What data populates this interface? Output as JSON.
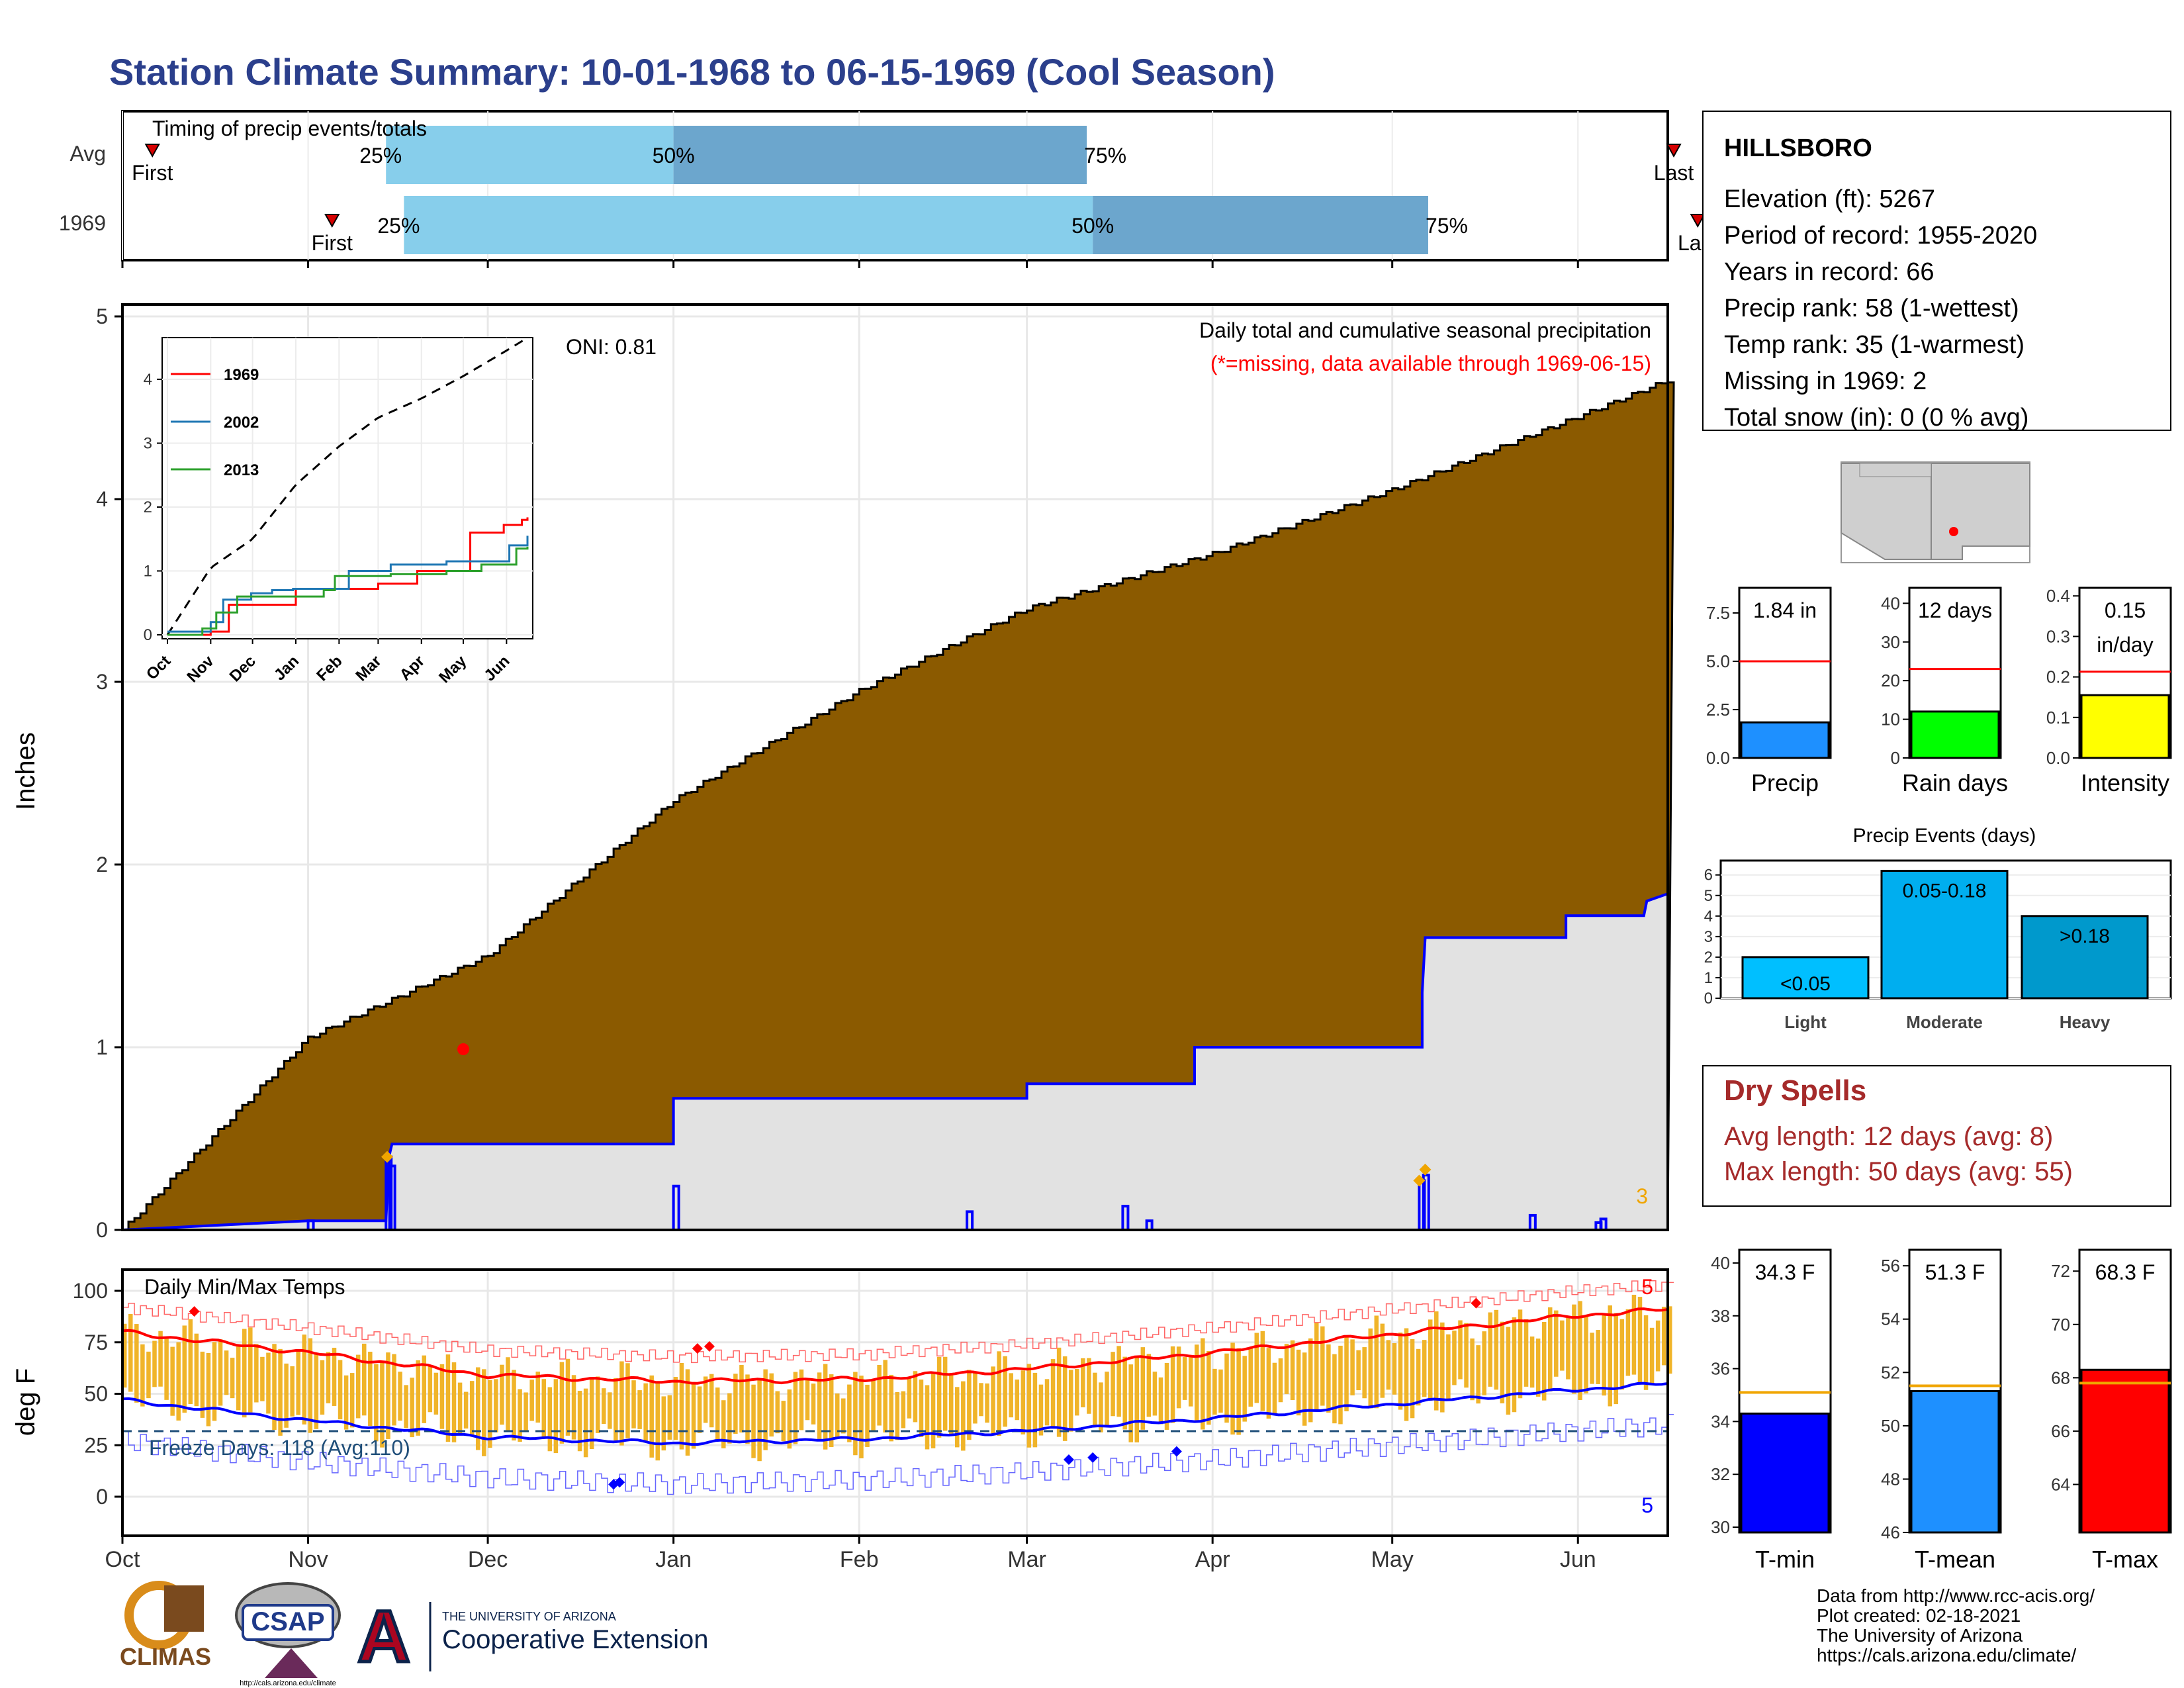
{
  "title": "Station Climate Summary: 10-01-1968 to 06-15-1969 (Cool Season)",
  "colors": {
    "title": "#2b3f8c",
    "precip_fill": "#8b5a00",
    "normal_fill": "#e2e2e2",
    "daily_precip": "#0000ff",
    "light_blue": "#87ceeb",
    "mid_blue": "#6ca6cd",
    "temp_bar": "#f0b429",
    "tmax_line": "#ff0000",
    "tmin_line": "#0000ff",
    "dry_spell": "#a52a2a"
  },
  "months": [
    "Oct",
    "Nov",
    "Dec",
    "Jan",
    "Feb",
    "Mar",
    "Apr",
    "May",
    "Jun"
  ],
  "timing": {
    "title": "Timing of precip events/totals",
    "rows": [
      {
        "label": "Avg",
        "first": "First",
        "last": "Last",
        "p25": "25%",
        "p50": "50%",
        "p75": "75%",
        "first_day": 5,
        "p25_day": 44,
        "p50_day": 92,
        "p75_day": 161,
        "last_day": 259
      },
      {
        "label": "1969",
        "first": "First",
        "last": "Last",
        "p25": "25%",
        "p50": "50%",
        "p75": "75%",
        "first_day": 35,
        "p25_day": 47,
        "p50_day": 162,
        "p75_day": 218,
        "last_day": 263
      }
    ]
  },
  "precip_panel": {
    "ylabel": "Inches",
    "yticks": [
      "0",
      "1",
      "2",
      "3",
      "4",
      "5"
    ],
    "oni": "ONI: 0.81",
    "label1": "Daily total and cumulative seasonal precipitation",
    "label2": "(*=missing, data available through 1969-06-15)",
    "corner_count": "3"
  },
  "inset": {
    "series": [
      "1969",
      "2002",
      "2013"
    ],
    "series_colors": [
      "#ff0000",
      "#1f77b4",
      "#2ca02c"
    ],
    "yticks": [
      "0",
      "1",
      "2",
      "3",
      "4"
    ],
    "months": [
      "Oct",
      "Nov",
      "Dec",
      "Jan",
      "Feb",
      "Mar",
      "Apr",
      "May",
      "Jun"
    ]
  },
  "temp_panel": {
    "title": "Daily Min/Max Temps",
    "ylabel": "deg F",
    "yticks": [
      "0",
      "25",
      "50",
      "75",
      "100"
    ],
    "freeze": "Freeze Days: 118 (Avg:110)",
    "count_top": "5",
    "count_bottom": "5"
  },
  "station": {
    "name": "HILLSBORO",
    "lines": [
      "Elevation (ft): 5267",
      "Period of record: 1955-2020",
      "Years in record: 66",
      "Precip rank: 58 (1-wettest)",
      "Temp rank: 35 (1-warmest)",
      "Missing in 1969: 2",
      "Total snow (in): 0 (0 % avg)"
    ]
  },
  "mini_bars": [
    {
      "label": "Precip",
      "value_text": "1.84 in",
      "value": 1.84,
      "avg": 5.0,
      "ymax": 8.8,
      "ticks": [
        "0.0",
        "2.5",
        "5.0",
        "7.5"
      ],
      "tick_vals": [
        0,
        2.5,
        5,
        7.5
      ],
      "color": "#1e90ff"
    },
    {
      "label": "Rain days",
      "value_text": "12 days",
      "value": 12,
      "avg": 23,
      "ymax": 44,
      "ticks": [
        "0",
        "10",
        "20",
        "30",
        "40"
      ],
      "tick_vals": [
        0,
        10,
        20,
        30,
        40
      ],
      "color": "#00ff00"
    },
    {
      "label": "Intensity",
      "value_text": "0.15 in/day",
      "value": 0.155,
      "avg": 0.213,
      "ymax": 0.42,
      "ticks": [
        "0.0",
        "0.1",
        "0.2",
        "0.3",
        "0.4"
      ],
      "tick_vals": [
        0,
        0.1,
        0.2,
        0.3,
        0.4
      ],
      "color": "#ffff00"
    }
  ],
  "events": {
    "title": "Precip Events (days)",
    "yticks": [
      "0",
      "1",
      "2",
      "3",
      "4",
      "5",
      "6"
    ],
    "bars": [
      {
        "label": "Light",
        "text": "<0.05",
        "value": 2,
        "color": "#00bfff"
      },
      {
        "label": "Moderate",
        "text": "0.05-0.18",
        "value": 6.2,
        "color": "#00aeef"
      },
      {
        "label": "Heavy",
        "text": ">0.18",
        "value": 4,
        "color": "#0099cc"
      }
    ]
  },
  "dry_spells": {
    "title": "Dry Spells",
    "avg": "Avg length: 12 days (avg: 8)",
    "max": "Max length: 50 days (avg: 55)"
  },
  "temp_bars": [
    {
      "label": "T-min",
      "value_text": "34.3 F",
      "value": 34.3,
      "avg": 35.1,
      "ymin": 29.8,
      "ymax": 40.5,
      "ticks": [
        "30",
        "32",
        "34",
        "36",
        "38",
        "40"
      ],
      "tick_vals": [
        30,
        32,
        34,
        36,
        38,
        40
      ],
      "color": "#0000ff"
    },
    {
      "label": "T-mean",
      "value_text": "51.3 F",
      "value": 51.3,
      "avg": 51.5,
      "ymin": 46,
      "ymax": 56.6,
      "ticks": [
        "46",
        "48",
        "50",
        "52",
        "54",
        "56"
      ],
      "tick_vals": [
        46,
        48,
        50,
        52,
        54,
        56
      ],
      "color": "#1e90ff"
    },
    {
      "label": "T-max",
      "value_text": "68.3 F",
      "value": 68.3,
      "avg": 67.8,
      "ymin": 62.2,
      "ymax": 72.8,
      "ticks": [
        "64",
        "66",
        "68",
        "70",
        "72"
      ],
      "tick_vals": [
        64,
        66,
        68,
        70,
        72
      ],
      "color": "#ff0000"
    }
  ],
  "footer": {
    "lines": [
      "Data from http://www.rcc-acis.org/",
      "Plot created: 02-18-2021",
      "The University of Arizona",
      "https://cals.arizona.edu/climate/"
    ],
    "climas": "CLIMAS",
    "csap": "CSAP",
    "ua_small": "THE UNIVERSITY OF ARIZONA",
    "ua_big": "Cooperative Extension",
    "csap_url": "http://cals.arizona.edu/climate"
  },
  "chart_data": [
    {
      "type": "area",
      "title": "Daily total and cumulative seasonal precipitation",
      "ylabel": "Inches",
      "ylim": [
        0,
        5
      ],
      "x": [
        "1968-10-01",
        "1968-11-01",
        "1968-12-01",
        "1969-01-01",
        "1969-02-01",
        "1969-03-01",
        "1969-04-01",
        "1969-05-01",
        "1969-06-01",
        "1969-06-15"
      ],
      "series": [
        {
          "name": "cumulative average",
          "values": [
            0.0,
            1.05,
            1.5,
            2.35,
            2.95,
            3.4,
            3.7,
            4.05,
            4.45,
            4.65
          ]
        },
        {
          "name": "1969",
          "values": [
            0.0,
            0.05,
            0.47,
            0.47,
            0.72,
            0.8,
            1.0,
            1.0,
            1.8,
            1.84
          ]
        }
      ]
    },
    {
      "type": "bar",
      "title": "Precip Events (days)",
      "categories": [
        "Light",
        "Moderate",
        "Heavy"
      ],
      "values": [
        2,
        6.2,
        4
      ]
    },
    {
      "type": "line",
      "title": "Daily Min/Max Temps",
      "ylabel": "deg F",
      "ylim": [
        -25,
        110
      ],
      "x": [
        "1968-10-01",
        "1968-11-01",
        "1968-12-01",
        "1969-01-01",
        "1969-02-01",
        "1969-03-01",
        "1969-04-01",
        "1969-05-01",
        "1969-06-01",
        "1969-06-15"
      ],
      "series": [
        {
          "name": "avg max",
          "values": [
            80,
            70,
            59,
            56,
            57,
            62,
            70,
            79,
            88,
            91
          ]
        },
        {
          "name": "avg min",
          "values": [
            47,
            37,
            29,
            26,
            28,
            32,
            38,
            45,
            52,
            55
          ]
        }
      ]
    }
  ]
}
